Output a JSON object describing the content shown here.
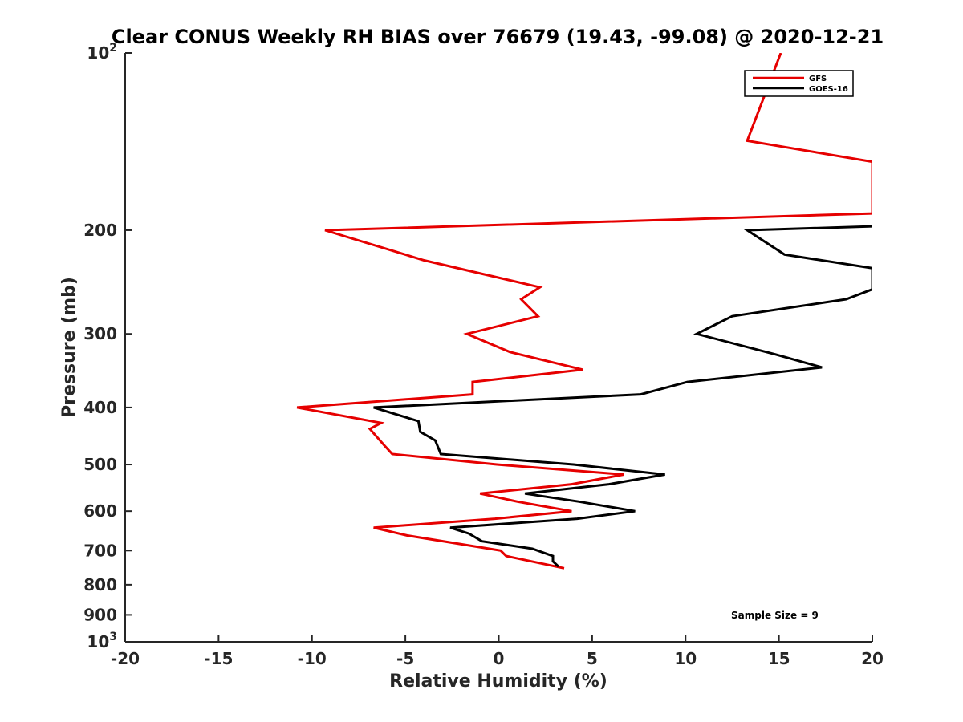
{
  "chart_data": {
    "type": "line",
    "title": "Clear CONUS Weekly RH BIAS over 76679 (19.43, -99.08) @ 2020-12-21",
    "xlabel": "Relative Humidity (%)",
    "ylabel": "Pressure (mb)",
    "xlim": [
      -20,
      20
    ],
    "ylim": [
      100,
      1000
    ],
    "y_scale": "log",
    "y_reversed": true,
    "grid": false,
    "legend_position": "top-right",
    "x_ticks": [
      "-20",
      "-15",
      "-10",
      "-5",
      "0",
      "5",
      "10",
      "15",
      "20"
    ],
    "y_ticks": [
      {
        "value": 100,
        "base": "10",
        "exp": "2"
      },
      {
        "value": 200,
        "label": "200"
      },
      {
        "value": 300,
        "label": "300"
      },
      {
        "value": 400,
        "label": "400"
      },
      {
        "value": 500,
        "label": "500"
      },
      {
        "value": 600,
        "label": "600"
      },
      {
        "value": 700,
        "label": "700"
      },
      {
        "value": 800,
        "label": "800"
      },
      {
        "value": 900,
        "label": "900"
      },
      {
        "value": 1000,
        "base": "10",
        "exp": "3"
      }
    ],
    "series": [
      {
        "name": "GFS",
        "color": "#e60000",
        "points": [
          [
            15.1,
            100
          ],
          [
            13.3,
            141
          ],
          [
            20.0,
            153
          ],
          [
            20.0,
            187
          ],
          [
            20.9,
            187
          ],
          [
            -9.3,
            200
          ],
          [
            -4.0,
            225
          ],
          [
            2.2,
            250
          ],
          [
            1.2,
            262
          ],
          [
            2.1,
            280
          ],
          [
            -1.7,
            300
          ],
          [
            0.6,
            322
          ],
          [
            4.5,
            345
          ],
          [
            -1.4,
            362
          ],
          [
            -1.4,
            380
          ],
          [
            -10.8,
            400
          ],
          [
            -6.3,
            425
          ],
          [
            -6.9,
            435
          ],
          [
            -6.1,
            465
          ],
          [
            -5.7,
            480
          ],
          [
            -0.1,
            500
          ],
          [
            6.7,
            520
          ],
          [
            3.9,
            540
          ],
          [
            -1.0,
            560
          ],
          [
            1.0,
            578
          ],
          [
            3.9,
            600
          ],
          [
            -0.2,
            618
          ],
          [
            -6.7,
            640
          ],
          [
            -4.9,
            660
          ],
          [
            0.1,
            700
          ],
          [
            0.4,
            715
          ],
          [
            3.5,
            750
          ]
        ]
      },
      {
        "name": "GOES-16",
        "color": "#000000",
        "points": [
          [
            20.0,
            197
          ],
          [
            13.3,
            200
          ],
          [
            15.3,
            220
          ],
          [
            20.0,
            232
          ],
          [
            20.0,
            252
          ],
          [
            18.6,
            262
          ],
          [
            12.5,
            280
          ],
          [
            10.6,
            300
          ],
          [
            14.8,
            325
          ],
          [
            17.3,
            342
          ],
          [
            10.1,
            362
          ],
          [
            7.6,
            380
          ],
          [
            -6.7,
            400
          ],
          [
            -4.3,
            422
          ],
          [
            -4.2,
            440
          ],
          [
            -3.4,
            455
          ],
          [
            -3.1,
            480
          ],
          [
            4.0,
            500
          ],
          [
            8.9,
            520
          ],
          [
            5.9,
            540
          ],
          [
            1.4,
            560
          ],
          [
            4.3,
            578
          ],
          [
            7.3,
            600
          ],
          [
            4.2,
            618
          ],
          [
            -2.6,
            640
          ],
          [
            -1.6,
            655
          ],
          [
            -0.9,
            675
          ],
          [
            1.8,
            695
          ],
          [
            2.9,
            715
          ],
          [
            2.9,
            730
          ],
          [
            3.2,
            745
          ]
        ]
      }
    ],
    "annotation": "Sample Size = 9"
  }
}
